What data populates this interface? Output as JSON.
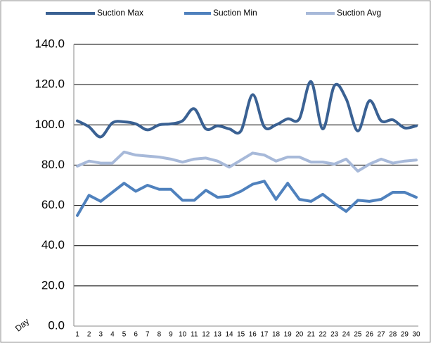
{
  "chart_data": {
    "type": "line",
    "x_label": "Day",
    "categories": [
      "1",
      "2",
      "3",
      "4",
      "5",
      "6",
      "7",
      "8",
      "9",
      "10",
      "11",
      "12",
      "13",
      "14",
      "15",
      "16",
      "17",
      "18",
      "19",
      "20",
      "21",
      "22",
      "23",
      "24",
      "25",
      "26",
      "27",
      "28",
      "29",
      "30"
    ],
    "series": [
      {
        "name": "Suction Max",
        "color": "#3a6193",
        "smooth": true,
        "values": [
          102,
          99,
          94,
          101,
          101.5,
          100.5,
          97.5,
          100,
          100.5,
          102,
          108,
          98,
          99.5,
          98,
          97,
          115,
          99,
          100,
          103,
          103,
          121.5,
          98,
          119.5,
          113,
          97,
          112,
          102,
          102.5,
          98.5,
          99.5
        ]
      },
      {
        "name": "Suction Min",
        "color": "#4f81bd",
        "smooth": false,
        "values": [
          55,
          65,
          62,
          66.5,
          71,
          67,
          70,
          68,
          68,
          62.5,
          62.5,
          67.5,
          64,
          64.5,
          67,
          70.5,
          72,
          63,
          71,
          63,
          62,
          65.5,
          61,
          57,
          62.5,
          62,
          63,
          66.5,
          66.5,
          64
        ]
      },
      {
        "name": "Suction Avg",
        "color": "#a7b9d9",
        "smooth": false,
        "values": [
          79.5,
          82,
          81,
          81,
          86.5,
          85,
          84.5,
          84,
          83,
          81.5,
          83,
          83.5,
          82,
          79,
          82.5,
          86,
          85,
          82,
          84,
          84,
          81.5,
          81.5,
          80.5,
          83,
          77,
          80.5,
          83,
          81,
          82,
          82.5
        ]
      }
    ],
    "ylim": [
      0,
      140
    ],
    "yticks": [
      {
        "value": 0,
        "label": "0.0"
      },
      {
        "value": 20,
        "label": "20.0"
      },
      {
        "value": 40,
        "label": "40.0"
      },
      {
        "value": 60,
        "label": "60.0"
      },
      {
        "value": 80,
        "label": "80.0"
      },
      {
        "value": 100,
        "label": "100.0"
      },
      {
        "value": 120,
        "label": "120.0"
      },
      {
        "value": 140,
        "label": "140.0"
      }
    ],
    "grid": true
  }
}
